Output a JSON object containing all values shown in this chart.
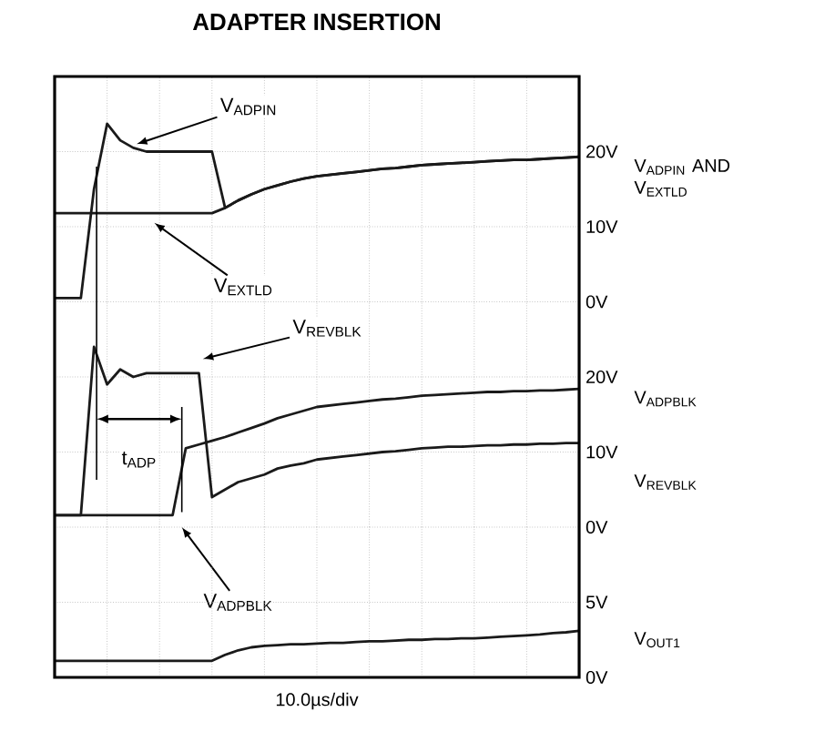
{
  "chart_data": [
    {
      "type": "line",
      "title": "ADAPTER INSERTION",
      "categories": [
        null,
        null,
        null,
        null,
        null,
        null,
        null,
        null,
        null,
        null,
        null,
        null,
        null,
        null,
        null,
        null,
        null,
        null,
        null,
        null,
        null,
        null,
        null,
        null,
        null,
        null,
        null,
        null,
        null,
        null,
        null,
        null,
        null,
        null,
        null,
        null,
        null,
        null,
        null,
        null,
        null
      ],
      "ylim": [
        0,
        30
      ],
      "yticks": [
        {
          "value": 0,
          "label": "0V"
        },
        {
          "value": 10,
          "label": "10V"
        },
        {
          "value": 20,
          "label": "20V"
        }
      ],
      "grid": true,
      "marker": "none",
      "line_style": "solid",
      "series": [
        {
          "color": "#1a1a1a",
          "values": [
            0.5,
            0.5,
            0.5,
            15,
            23.7,
            21.5,
            20.5,
            20,
            20,
            20,
            20,
            20,
            20,
            12.5,
            13.5,
            14.3,
            15,
            15.5,
            16,
            16.4,
            16.7,
            16.9,
            17.1,
            17.3,
            17.5,
            17.7,
            17.8,
            18,
            18.2,
            18.3,
            18.4,
            18.5,
            18.6,
            18.7,
            18.8,
            18.9,
            18.9,
            19,
            19.1,
            19.2,
            19.3
          ]
        },
        {
          "color": "#1a1a1a",
          "values": [
            11.8,
            11.8,
            11.8,
            11.8,
            11.8,
            11.8,
            11.8,
            11.8,
            11.8,
            11.8,
            11.8,
            11.8,
            11.8,
            12.5,
            13.5,
            14.3,
            15,
            15.5,
            16,
            16.4,
            16.7,
            16.9,
            17.1,
            17.3,
            17.5,
            17.7,
            17.8,
            18,
            18.2,
            18.3,
            18.4,
            18.5,
            18.6,
            18.7,
            18.8,
            18.9,
            18.9,
            19,
            19.1,
            19.2,
            19.3
          ]
        }
      ],
      "annotations": [
        "V$_{ADPIN}$",
        "V$_{EXTLD}$",
        "V$_{ADPIN}$ AND V$_{EXTLD}$"
      ]
    },
    {
      "type": "line",
      "categories": [
        null,
        null,
        null,
        null,
        null,
        null,
        null,
        null,
        null,
        null,
        null,
        null,
        null,
        null,
        null,
        null,
        null,
        null,
        null,
        null,
        null,
        null,
        null,
        null,
        null,
        null,
        null,
        null,
        null,
        null,
        null,
        null,
        null,
        null,
        null,
        null,
        null,
        null,
        null,
        null,
        null
      ],
      "ylim": [
        0,
        30
      ],
      "yticks": [
        {
          "value": 0,
          "label": "0V"
        },
        {
          "value": 10,
          "label": "10V"
        },
        {
          "value": 20,
          "label": "20V"
        }
      ],
      "grid": true,
      "marker": "none",
      "line_style": "solid",
      "series": [
        {
          "color": "#1a1a1a",
          "values": [
            1.6,
            1.6,
            1.6,
            24,
            19,
            21,
            20,
            20.5,
            20.5,
            20.5,
            20.5,
            20.5,
            4,
            5,
            6,
            6.5,
            7,
            7.8,
            8.2,
            8.5,
            9,
            9.2,
            9.4,
            9.6,
            9.8,
            10,
            10.1,
            10.3,
            10.5,
            10.6,
            10.7,
            10.7,
            10.8,
            10.9,
            10.9,
            11,
            11,
            11.1,
            11.1,
            11.2,
            11.2
          ]
        },
        {
          "color": "#1a1a1a",
          "values": [
            1.6,
            1.6,
            1.6,
            1.6,
            1.6,
            1.6,
            1.6,
            1.6,
            1.6,
            1.6,
            10.5,
            11,
            11.5,
            12,
            12.6,
            13.2,
            13.8,
            14.5,
            15,
            15.5,
            16,
            16.2,
            16.4,
            16.6,
            16.8,
            17,
            17.1,
            17.3,
            17.5,
            17.6,
            17.7,
            17.8,
            17.9,
            18,
            18,
            18.1,
            18.1,
            18.2,
            18.2,
            18.3,
            18.4
          ]
        }
      ],
      "annotations": [
        "V$_{REVBLK}$",
        "V$_{ADPBLK}$",
        "t$_{ADP}$",
        "V$_{ADPBLK}$",
        "V$_{REVBLK}$"
      ]
    },
    {
      "type": "line",
      "xlabel": "10.0µs/div",
      "categories": [
        null,
        null,
        null,
        null,
        null,
        null,
        null,
        null,
        null,
        null,
        null,
        null,
        null,
        null,
        null,
        null,
        null,
        null,
        null,
        null,
        null,
        null,
        null,
        null,
        null,
        null,
        null,
        null,
        null,
        null,
        null,
        null,
        null,
        null,
        null,
        null,
        null,
        null,
        null,
        null,
        null
      ],
      "ylim": [
        0,
        10
      ],
      "yticks": [
        {
          "value": 0,
          "label": "0V"
        },
        {
          "value": 5,
          "label": "5V"
        }
      ],
      "grid": true,
      "marker": "none",
      "line_style": "solid",
      "series": [
        {
          "color": "#1a1a1a",
          "values": [
            1.1,
            1.1,
            1.1,
            1.1,
            1.1,
            1.1,
            1.1,
            1.1,
            1.1,
            1.1,
            1.1,
            1.1,
            1.1,
            1.5,
            1.8,
            2.0,
            2.1,
            2.15,
            2.2,
            2.2,
            2.25,
            2.3,
            2.3,
            2.35,
            2.4,
            2.4,
            2.45,
            2.5,
            2.5,
            2.55,
            2.55,
            2.6,
            2.6,
            2.65,
            2.7,
            2.75,
            2.8,
            2.85,
            2.95,
            3.0,
            3.1
          ]
        }
      ],
      "annotations": [
        "V$_{OUT1}$"
      ]
    }
  ]
}
